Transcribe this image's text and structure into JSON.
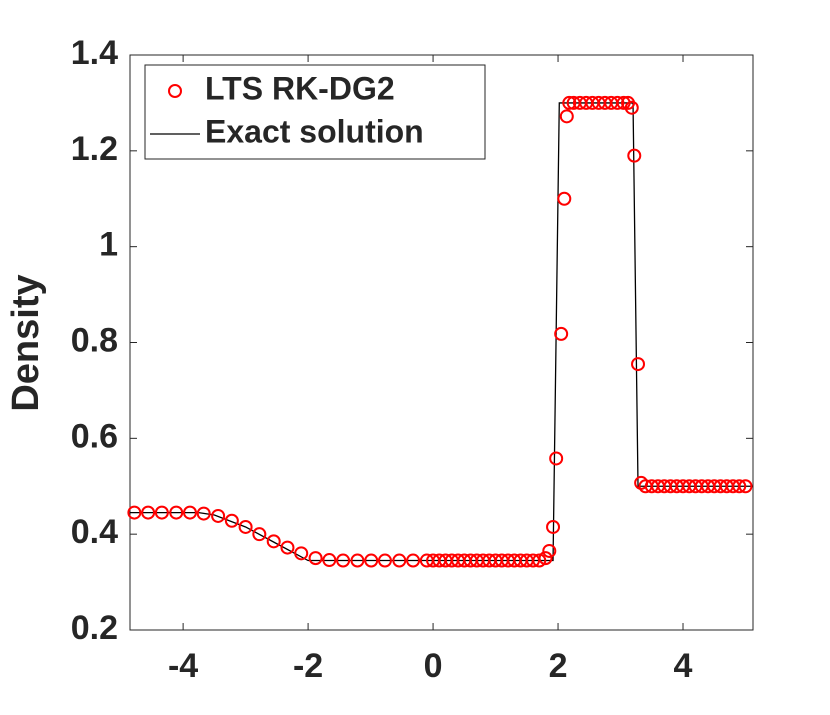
{
  "chart_data": {
    "type": "line",
    "ylabel": "Density",
    "xlim": [
      -4.85,
      5.12
    ],
    "xticks": [
      -4,
      -2,
      0,
      2,
      4
    ],
    "ylim": [
      0.2,
      1.4
    ],
    "yticks": [
      0.2,
      0.4,
      0.6,
      0.8,
      1,
      1.2,
      1.4
    ],
    "legend": "upper left",
    "series": [
      {
        "name": "LTS RK-DG2",
        "color": "#ff0000",
        "marker": "circle",
        "x": [
          -4.78,
          -4.56,
          -4.34,
          -4.11,
          -3.89,
          -3.67,
          -3.44,
          -3.22,
          -3.0,
          -2.78,
          -2.55,
          -2.33,
          -2.11,
          -1.88,
          -1.66,
          -1.44,
          -1.21,
          -0.99,
          -0.77,
          -0.54,
          -0.32,
          -0.1,
          0,
          0.1,
          0.2,
          0.3,
          0.4,
          0.5,
          0.6,
          0.7,
          0.8,
          0.9,
          1.0,
          1.1,
          1.2,
          1.3,
          1.4,
          1.5,
          1.6,
          1.7,
          1.8,
          1.86,
          1.92,
          1.97,
          2.05,
          2.1,
          2.14,
          2.18,
          2.25,
          2.35,
          2.45,
          2.55,
          2.65,
          2.75,
          2.85,
          2.95,
          3.05,
          3.12,
          3.18,
          3.22,
          3.28,
          3.33,
          3.4,
          3.5,
          3.6,
          3.7,
          3.8,
          3.9,
          4.0,
          4.1,
          4.2,
          4.3,
          4.4,
          4.5,
          4.6,
          4.7,
          4.8,
          4.9,
          5.0
        ],
        "values": [
          0.445,
          0.445,
          0.445,
          0.445,
          0.445,
          0.443,
          0.438,
          0.428,
          0.415,
          0.4,
          0.385,
          0.372,
          0.36,
          0.35,
          0.346,
          0.345,
          0.345,
          0.345,
          0.345,
          0.345,
          0.345,
          0.345,
          0.345,
          0.345,
          0.345,
          0.345,
          0.345,
          0.345,
          0.345,
          0.345,
          0.345,
          0.345,
          0.345,
          0.345,
          0.345,
          0.345,
          0.345,
          0.345,
          0.345,
          0.345,
          0.35,
          0.365,
          0.415,
          0.558,
          0.818,
          1.1,
          1.272,
          1.3,
          1.3,
          1.3,
          1.3,
          1.3,
          1.3,
          1.3,
          1.3,
          1.3,
          1.3,
          1.3,
          1.29,
          1.19,
          0.755,
          0.507,
          0.5,
          0.5,
          0.5,
          0.5,
          0.5,
          0.5,
          0.5,
          0.5,
          0.5,
          0.5,
          0.5,
          0.5,
          0.5,
          0.5,
          0.5,
          0.5,
          0.5
        ]
      },
      {
        "name": "Exact solution",
        "color": "#000000",
        "x": [
          -4.85,
          -3.75,
          -3.5,
          -3.0,
          -2.5,
          -2.0,
          1.92,
          2.02,
          3.2,
          3.28,
          5.12
        ],
        "values": [
          0.445,
          0.445,
          0.44,
          0.415,
          0.38,
          0.345,
          0.345,
          1.3,
          1.3,
          0.5,
          0.5
        ]
      }
    ]
  }
}
